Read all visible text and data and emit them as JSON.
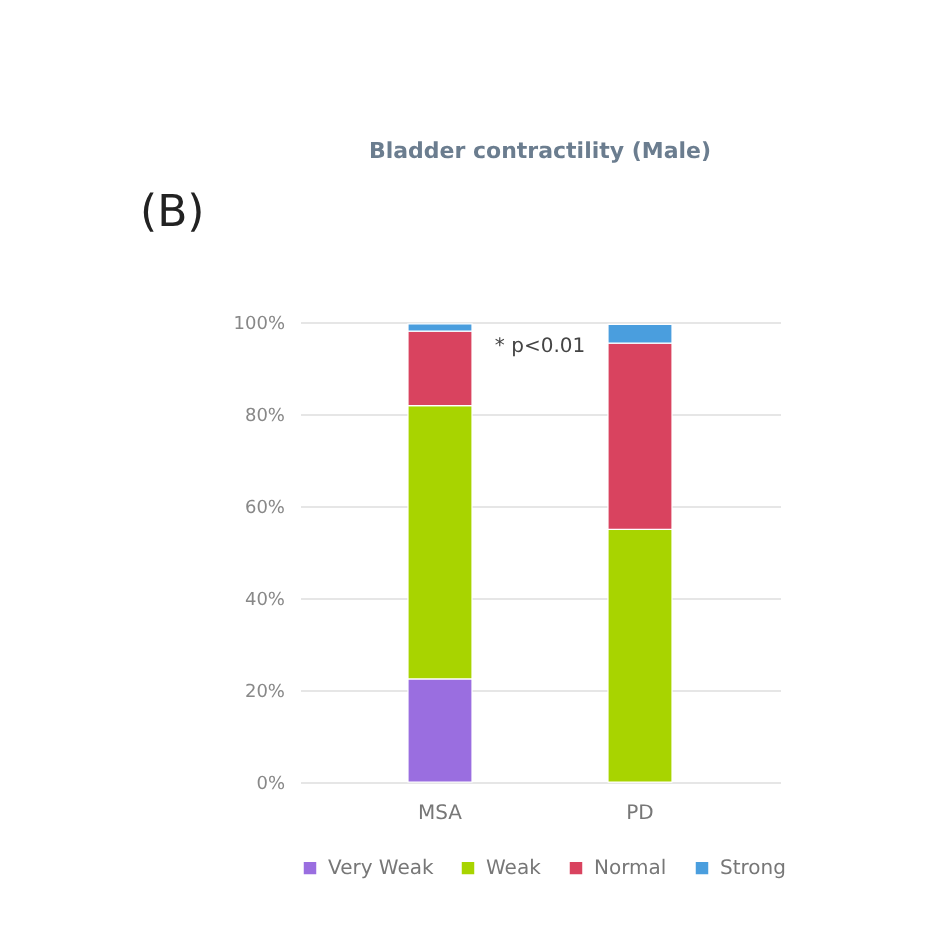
{
  "chart_data": {
    "type": "bar",
    "title": "Bladder contractility (Male)",
    "stacked": true,
    "categories": [
      "MSA",
      "PD"
    ],
    "series": [
      {
        "name": "Very Weak",
        "color": "#9a6ee0",
        "values": [
          22.4,
          0
        ]
      },
      {
        "name": "Weak",
        "color": "#a8d400",
        "values": [
          59.4,
          54.9
        ]
      },
      {
        "name": "Normal",
        "color": "#d9435f",
        "values": [
          16.2,
          40.5
        ]
      },
      {
        "name": "Strong",
        "color": "#4a9ede",
        "values": [
          1.6,
          4.1
        ]
      }
    ],
    "ylim": [
      0,
      100
    ],
    "yticks": [
      {
        "value": 0,
        "label": "0%"
      },
      {
        "value": 20,
        "label": "20%"
      },
      {
        "value": 40,
        "label": "40%"
      },
      {
        "value": 60,
        "label": "60%"
      },
      {
        "value": 80,
        "label": "80%"
      },
      {
        "value": 100,
        "label": "100%"
      }
    ],
    "grid": "y",
    "legend": "bottom",
    "annotations": [
      "(B)",
      "* p<0.01"
    ]
  }
}
